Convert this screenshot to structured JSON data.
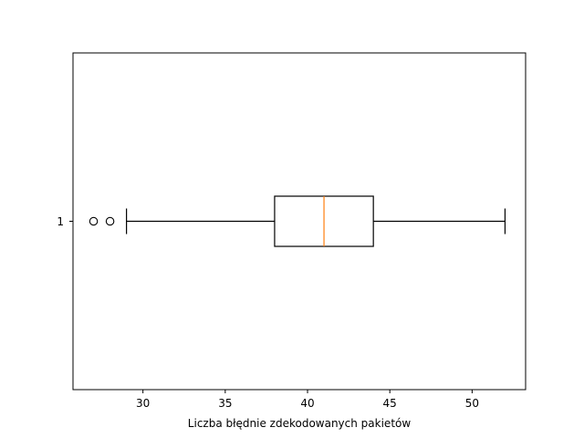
{
  "chart_data": {
    "type": "boxplot",
    "orientation": "horizontal",
    "title": "",
    "xlabel": "Liczba błędnie zdekodowanych pakietów",
    "ylabel": "",
    "xlim": [
      25.75,
      53.25
    ],
    "xticks": [
      30,
      35,
      40,
      45,
      50
    ],
    "categories": [
      "1"
    ],
    "boxes": [
      {
        "label": "1",
        "whisker_low": 29,
        "q1": 38,
        "median": 41,
        "q3": 44,
        "whisker_high": 52,
        "outliers": [
          27,
          28
        ]
      }
    ],
    "grid": false,
    "legend": "none",
    "colors": {
      "box": "#000000",
      "median": "#ff7f0e",
      "axes": "#000000"
    }
  }
}
